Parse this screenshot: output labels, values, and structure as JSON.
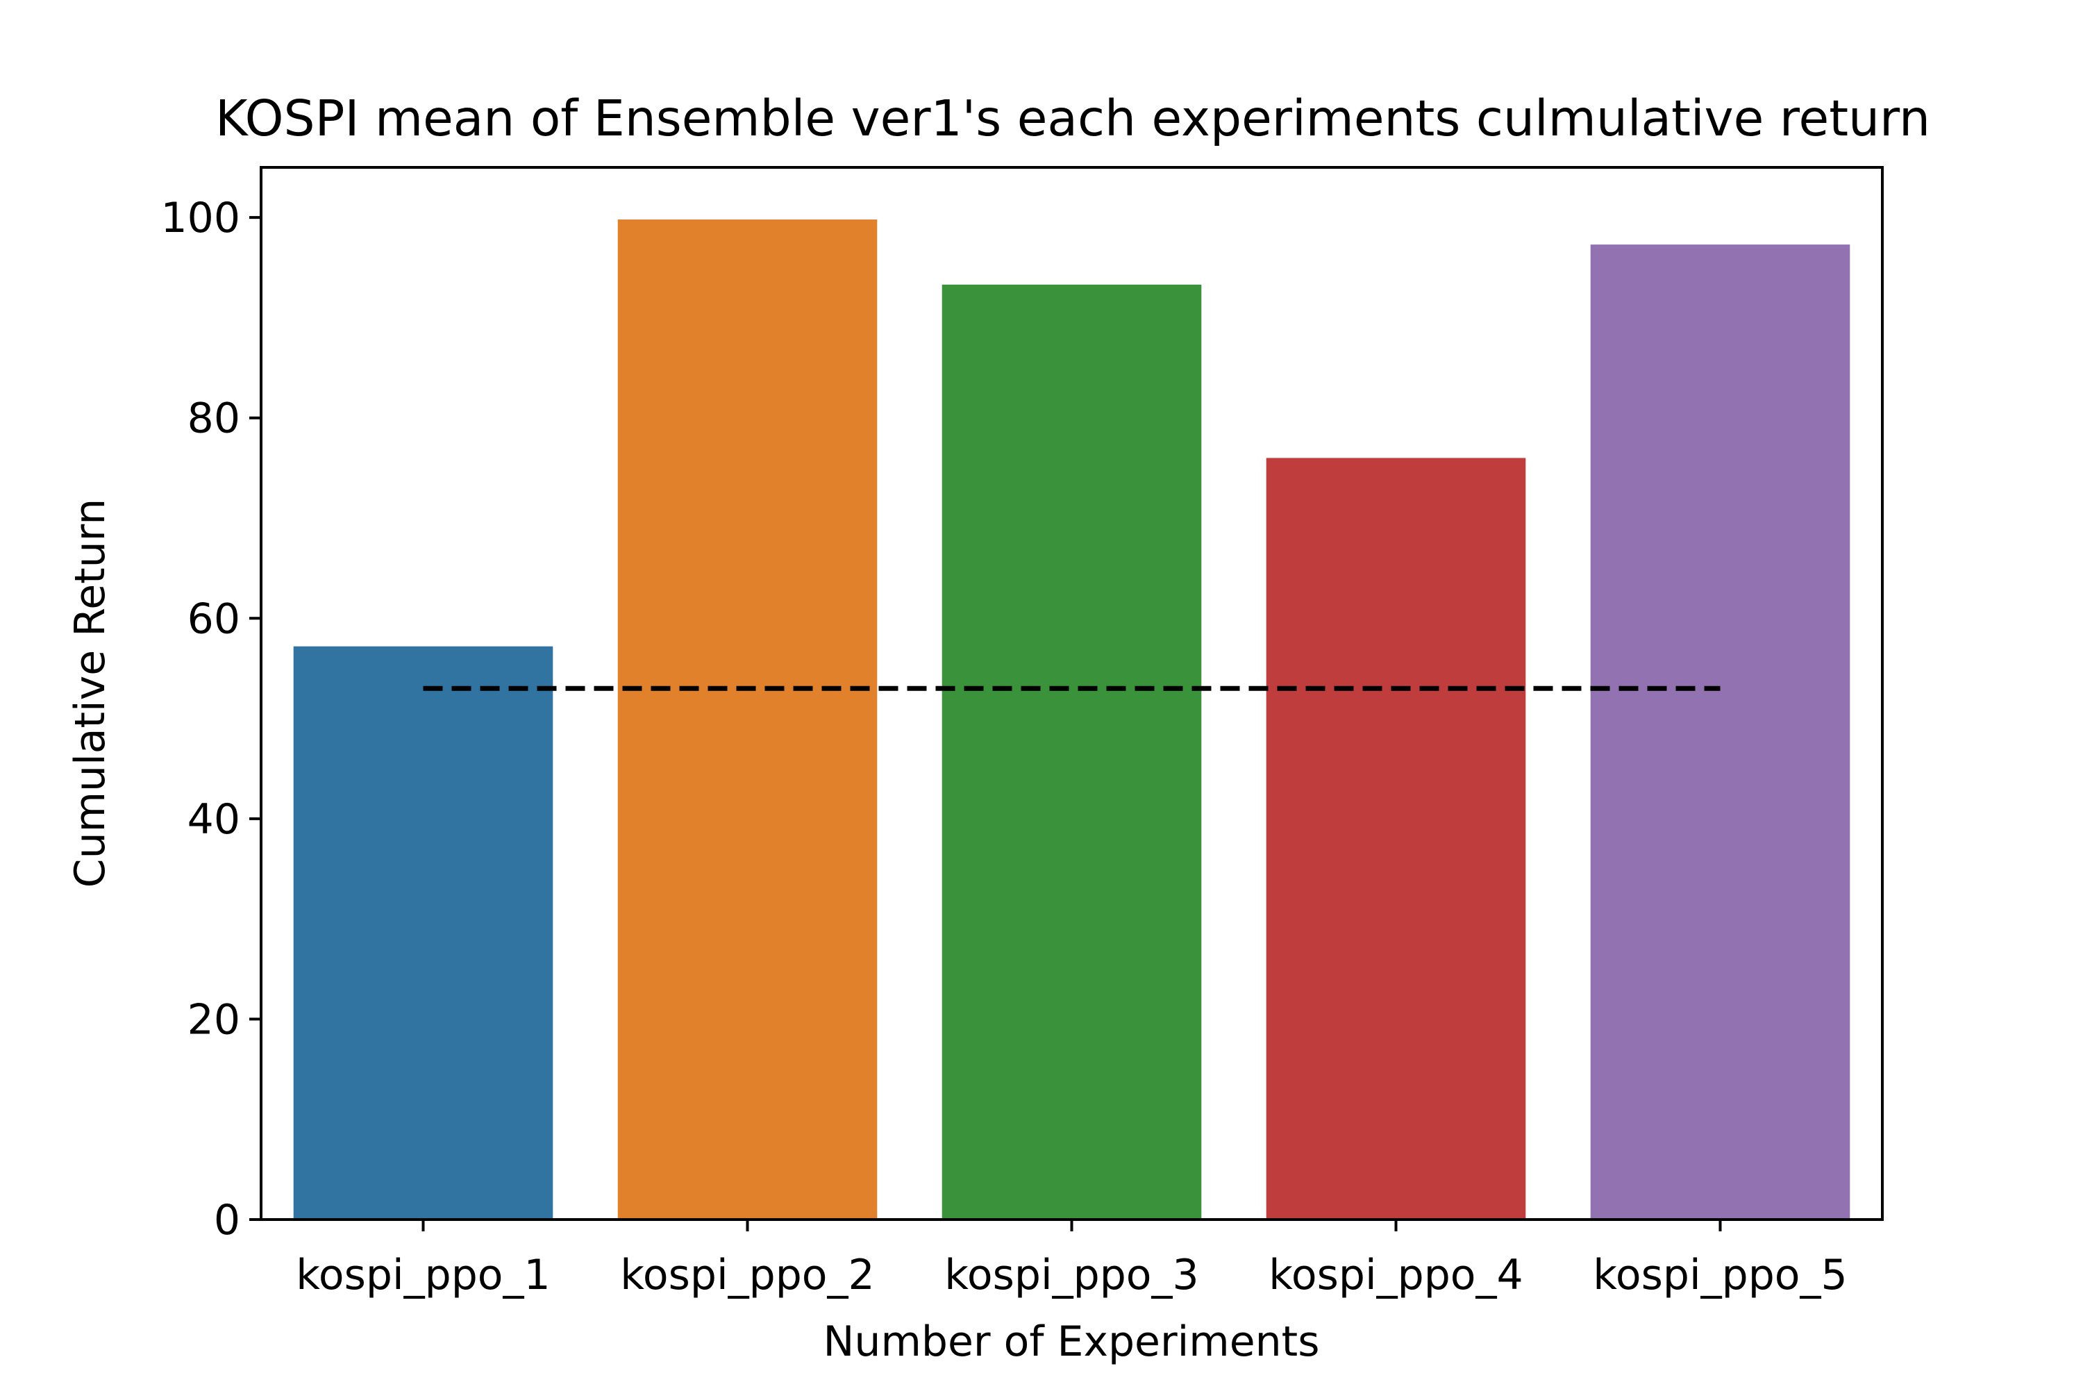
{
  "chart_data": {
    "type": "bar",
    "title": "KOSPI mean of Ensemble ver1's each experiments culmulative return",
    "xlabel": "Number of Experiments",
    "ylabel": "Cumulative Return",
    "categories": [
      "kospi_ppo_1",
      "kospi_ppo_2",
      "kospi_ppo_3",
      "kospi_ppo_4",
      "kospi_ppo_5"
    ],
    "values": [
      57.2,
      99.8,
      93.3,
      76.0,
      97.3
    ],
    "colors": [
      "#3274a1",
      "#e1812c",
      "#3a923a",
      "#c03d3e",
      "#9372b2"
    ],
    "ylim": [
      0,
      105
    ],
    "yticks": [
      0,
      20,
      40,
      60,
      80,
      100
    ],
    "reference_line": {
      "value": 53,
      "style": "dashed",
      "color": "#000000"
    },
    "grid": false,
    "legend": "none"
  }
}
